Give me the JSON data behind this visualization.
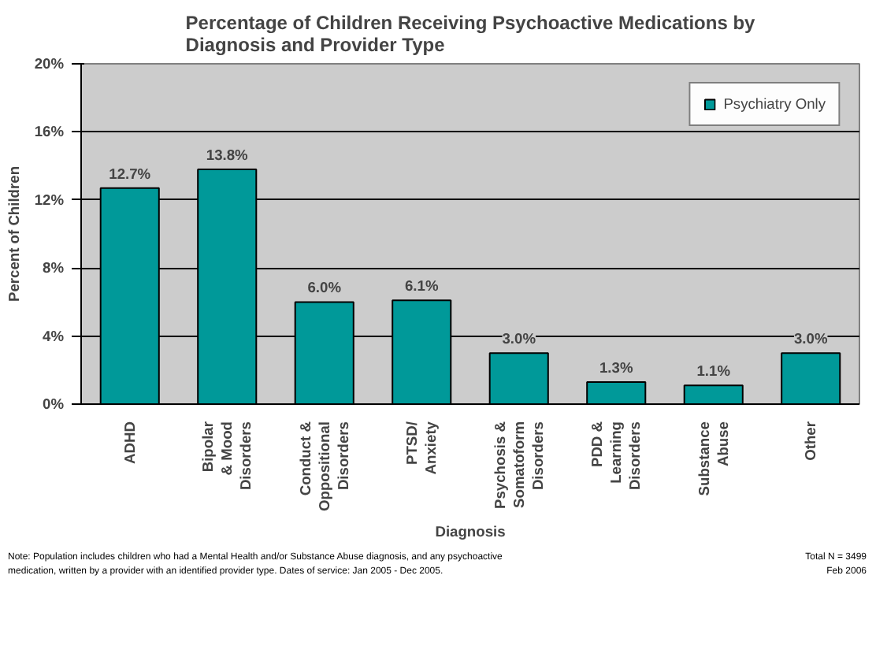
{
  "chart_data": {
    "type": "bar",
    "title": "Percentage of Children Receiving Psychoactive Medications by\nDiagnosis and Provider Type",
    "xlabel": "Diagnosis",
    "ylabel": "Percent of Children",
    "categories": [
      "ADHD",
      "Bipolar\n& Mood\nDisorders",
      "Conduct &\nOppositional\nDisorders",
      "PTSD/\nAnxiety",
      "Psychosis &\nSomatoform\nDisorders",
      "PDD &\nLearning\nDisorders",
      "Substance\nAbuse",
      "Other"
    ],
    "series": [
      {
        "name": "Psychiatry Only",
        "color": "#009999",
        "values": [
          12.7,
          13.8,
          6.0,
          6.1,
          3.0,
          1.3,
          1.1,
          3.0
        ],
        "value_labels": [
          "12.7%",
          "13.8%",
          "6.0%",
          "6.1%",
          "3.0%",
          "1.3%",
          "1.1%",
          "3.0%"
        ]
      }
    ],
    "ylim": [
      0,
      20
    ],
    "yticks": [
      {
        "value": 0,
        "label": "0%"
      },
      {
        "value": 4,
        "label": "4%"
      },
      {
        "value": 8,
        "label": "8%"
      },
      {
        "value": 12,
        "label": "12%"
      },
      {
        "value": 16,
        "label": "16%"
      },
      {
        "value": 20,
        "label": "20%"
      }
    ],
    "grid": "y",
    "legend": "top right",
    "annotations": [
      "Note: Population includes children who had a Mental Health and/or Substance Abuse diagnosis, and any psychoactive\nmedication, written by a provider with an identified provider type.  Dates of service: Jan 2005 - Dec 2005.",
      "Total N = 3499\nFeb 2006"
    ]
  }
}
